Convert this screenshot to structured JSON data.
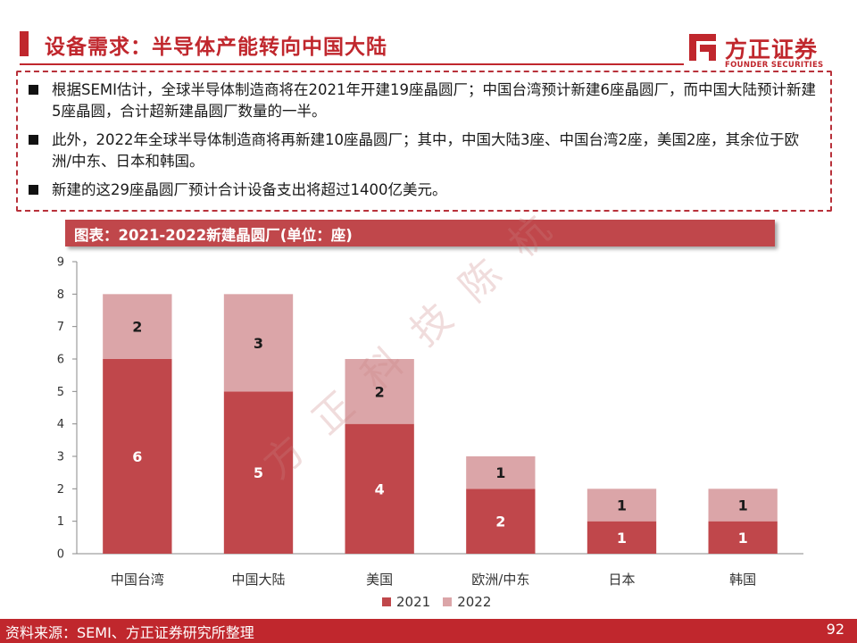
{
  "header": {
    "title": "设备需求：半导体产能转向中国大陆",
    "logo_cn": "方正证券",
    "logo_en": "FOUNDER SECURITIES"
  },
  "bullets": [
    "根据SEMI估计，全球半导体制造商将在2021年开建19座晶圆厂；中国台湾预计新建6座晶圆厂，而中国大陆预计新建5座晶圆，合计超新建晶圆厂数量的一半。",
    "此外，2022年全球半导体制造商将再新建10座晶圆厂；其中，中国大陆3座、中国台湾2座，美国2座，其余位于欧洲/中东、日本和韩国。",
    "新建的这29座晶圆厂预计合计设备支出将超过1400亿美元。"
  ],
  "chart_data": {
    "type": "bar",
    "stacked": true,
    "title": "图表：2021-2022新建晶圆厂(单位：座)",
    "categories": [
      "中国台湾",
      "中国大陆",
      "美国",
      "欧洲/中东",
      "日本",
      "韩国"
    ],
    "series": [
      {
        "name": "2021",
        "values": [
          6,
          5,
          4,
          2,
          1,
          1
        ],
        "color": "#c0474b"
      },
      {
        "name": "2022",
        "values": [
          2,
          3,
          2,
          1,
          1,
          1
        ],
        "color": "#dba5a8"
      }
    ],
    "yticks": [
      0,
      1,
      2,
      3,
      4,
      5,
      6,
      7,
      8,
      9
    ],
    "ylim": [
      0,
      9
    ],
    "grid": false,
    "legend": "bottom"
  },
  "watermark": "方 正 科 技   陈 杭",
  "footer": {
    "source": "资料来源：SEMI、方正证券研究所整理",
    "page": "92"
  },
  "colors": {
    "brand": "#c0272d",
    "series_2021": "#c0474b",
    "series_2022": "#dba5a8"
  }
}
